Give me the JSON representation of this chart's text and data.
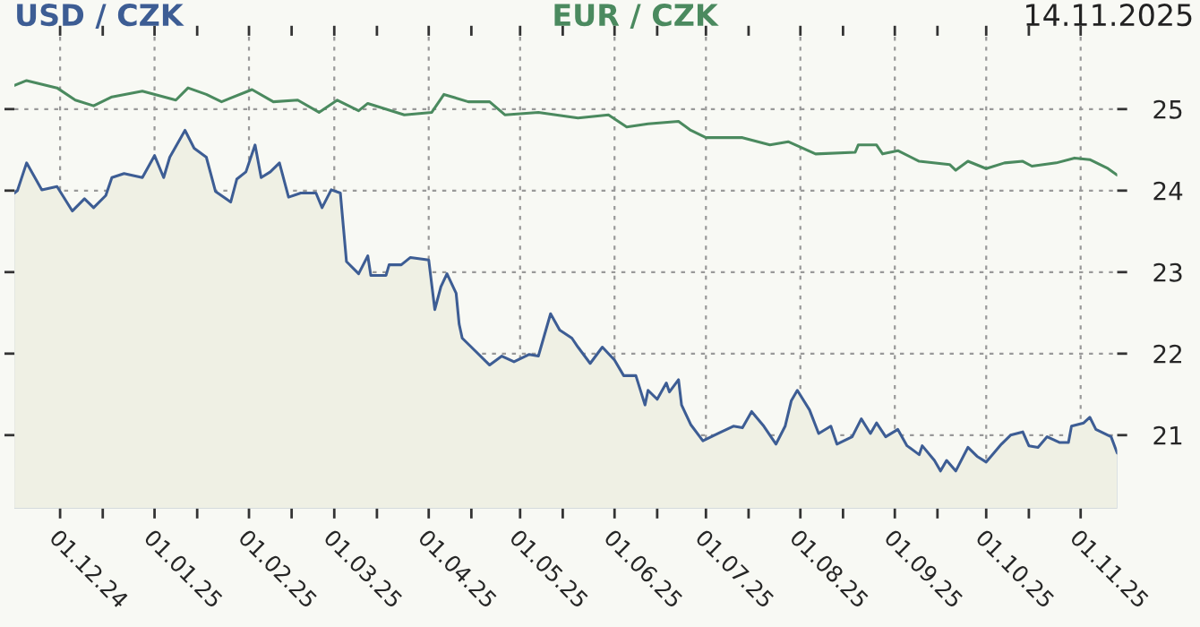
{
  "chart_data": {
    "type": "line",
    "annotations": [
      "14.11.2025"
    ],
    "legend": "top",
    "grid": true,
    "xlim": [
      "2024-11-16",
      "2025-11-13"
    ],
    "ylim": [
      20.1,
      25.9
    ],
    "yticks": [
      21,
      22,
      23,
      24,
      25
    ],
    "tick_labels": "xy",
    "xticks": [
      {
        "value": "2024-12-01",
        "label": "01.12.24"
      },
      {
        "value": "2024-12-15",
        "label": null
      },
      {
        "value": "2025-01-01",
        "label": "01.01.25"
      },
      {
        "value": "2025-01-15",
        "label": null
      },
      {
        "value": "2025-02-01",
        "label": "01.02.25"
      },
      {
        "value": "2025-02-15",
        "label": null
      },
      {
        "value": "2025-03-01",
        "label": "01.03.25"
      },
      {
        "value": "2025-03-15",
        "label": null
      },
      {
        "value": "2025-04-01",
        "label": "01.04.25"
      },
      {
        "value": "2025-04-15",
        "label": null
      },
      {
        "value": "2025-05-01",
        "label": "01.05.25"
      },
      {
        "value": "2025-05-15",
        "label": null
      },
      {
        "value": "2025-06-01",
        "label": "01.06.25"
      },
      {
        "value": "2025-06-15",
        "label": null
      },
      {
        "value": "2025-07-01",
        "label": "01.07.25"
      },
      {
        "value": "2025-07-15",
        "label": null
      },
      {
        "value": "2025-08-01",
        "label": "01.08.25"
      },
      {
        "value": "2025-08-15",
        "label": null
      },
      {
        "value": "2025-09-01",
        "label": "01.09.25"
      },
      {
        "value": "2025-09-15",
        "label": null
      },
      {
        "value": "2025-10-01",
        "label": "01.10.25"
      },
      {
        "value": "2025-10-15",
        "label": null
      },
      {
        "value": "2025-11-01",
        "label": "01.11.25"
      }
    ],
    "series": [
      {
        "name": "USD / CZK",
        "type": "area",
        "color": "#3d5d94",
        "x": [
          "2024-11-16",
          "2024-11-17",
          "2024-11-20",
          "2024-11-25",
          "2024-11-30",
          "2024-12-05",
          "2024-12-09",
          "2024-12-12",
          "2024-12-16",
          "2024-12-18",
          "2024-12-22",
          "2024-12-28",
          "2025-01-01",
          "2025-01-04",
          "2025-01-06",
          "2025-01-11",
          "2025-01-14",
          "2025-01-18",
          "2025-01-21",
          "2025-01-26",
          "2025-01-28",
          "2025-01-31",
          "2025-02-03",
          "2025-02-05",
          "2025-02-08",
          "2025-02-11",
          "2025-02-14",
          "2025-02-18",
          "2025-02-23",
          "2025-02-25",
          "2025-02-28",
          "2025-03-03",
          "2025-03-05",
          "2025-03-09",
          "2025-03-12",
          "2025-03-13",
          "2025-03-18",
          "2025-03-19",
          "2025-03-23",
          "2025-03-26",
          "2025-04-01",
          "2025-04-03",
          "2025-04-05",
          "2025-04-07",
          "2025-04-10",
          "2025-04-11",
          "2025-04-12",
          "2025-04-15",
          "2025-04-21",
          "2025-04-25",
          "2025-04-29",
          "2025-05-04",
          "2025-05-07",
          "2025-05-11",
          "2025-05-14",
          "2025-05-18",
          "2025-05-20",
          "2025-05-24",
          "2025-05-28",
          "2025-06-01",
          "2025-06-04",
          "2025-06-08",
          "2025-06-11",
          "2025-06-12",
          "2025-06-15",
          "2025-06-18",
          "2025-06-19",
          "2025-06-22",
          "2025-06-23",
          "2025-06-26",
          "2025-06-30",
          "2025-07-05",
          "2025-07-10",
          "2025-07-13",
          "2025-07-16",
          "2025-07-20",
          "2025-07-24",
          "2025-07-27",
          "2025-07-29",
          "2025-07-31",
          "2025-08-04",
          "2025-08-07",
          "2025-08-11",
          "2025-08-13",
          "2025-08-18",
          "2025-08-21",
          "2025-08-24",
          "2025-08-26",
          "2025-08-29",
          "2025-09-02",
          "2025-09-05",
          "2025-09-09",
          "2025-09-10",
          "2025-09-14",
          "2025-09-16",
          "2025-09-18",
          "2025-09-21",
          "2025-09-25",
          "2025-09-28",
          "2025-10-01",
          "2025-10-06",
          "2025-10-09",
          "2025-10-13",
          "2025-10-15",
          "2025-10-18",
          "2025-10-21",
          "2025-10-25",
          "2025-10-28",
          "2025-10-29",
          "2025-11-02",
          "2025-11-04",
          "2025-11-06",
          "2025-11-11",
          "2025-11-13"
        ],
        "values": [
          23.97,
          24.0,
          24.34,
          24.01,
          24.05,
          23.75,
          23.9,
          23.79,
          23.94,
          24.16,
          24.21,
          24.16,
          24.43,
          24.16,
          24.41,
          24.74,
          24.52,
          24.41,
          23.99,
          23.86,
          24.14,
          24.23,
          24.56,
          24.16,
          24.23,
          24.34,
          23.92,
          23.97,
          23.97,
          23.79,
          24.01,
          23.97,
          23.13,
          22.98,
          23.2,
          22.96,
          22.96,
          23.09,
          23.09,
          23.18,
          23.15,
          22.54,
          22.82,
          22.98,
          22.74,
          22.36,
          22.19,
          22.08,
          21.86,
          21.97,
          21.9,
          21.99,
          21.97,
          22.49,
          22.29,
          22.19,
          22.08,
          21.88,
          22.08,
          21.92,
          21.73,
          21.73,
          21.37,
          21.55,
          21.44,
          21.64,
          21.53,
          21.68,
          21.37,
          21.13,
          20.93,
          21.02,
          21.11,
          21.09,
          21.29,
          21.11,
          20.89,
          21.11,
          21.42,
          21.55,
          21.31,
          21.02,
          21.11,
          20.89,
          20.98,
          21.2,
          21.02,
          21.15,
          20.98,
          21.07,
          20.87,
          20.76,
          20.87,
          20.69,
          20.56,
          20.69,
          20.56,
          20.85,
          20.74,
          20.67,
          20.89,
          21.0,
          21.04,
          20.87,
          20.85,
          20.98,
          20.91,
          20.91,
          21.11,
          21.15,
          21.22,
          21.07,
          20.98,
          20.78
        ]
      },
      {
        "name": "EUR / CZK",
        "color": "#4b8a5f",
        "x": [
          "2024-11-16",
          "2024-11-20",
          "2024-11-30",
          "2024-12-06",
          "2024-12-12",
          "2024-12-18",
          "2024-12-28",
          "2025-01-08",
          "2025-01-12",
          "2025-01-18",
          "2025-01-23",
          "2025-02-02",
          "2025-02-09",
          "2025-02-17",
          "2025-02-24",
          "2025-03-02",
          "2025-03-09",
          "2025-03-12",
          "2025-03-24",
          "2025-04-02",
          "2025-04-06",
          "2025-04-14",
          "2025-04-21",
          "2025-04-26",
          "2025-05-07",
          "2025-05-20",
          "2025-05-30",
          "2025-06-05",
          "2025-06-12",
          "2025-06-22",
          "2025-06-26",
          "2025-07-01",
          "2025-07-13",
          "2025-07-22",
          "2025-07-28",
          "2025-08-06",
          "2025-08-19",
          "2025-08-20",
          "2025-08-26",
          "2025-08-28",
          "2025-09-02",
          "2025-09-09",
          "2025-09-19",
          "2025-09-21",
          "2025-09-25",
          "2025-10-01",
          "2025-10-07",
          "2025-10-13",
          "2025-10-16",
          "2025-10-24",
          "2025-10-30",
          "2025-11-04",
          "2025-11-10",
          "2025-11-13"
        ],
        "values": [
          25.29,
          25.35,
          25.26,
          25.11,
          25.04,
          25.15,
          25.22,
          25.11,
          25.26,
          25.18,
          25.09,
          25.24,
          25.09,
          25.11,
          24.96,
          25.11,
          24.98,
          25.07,
          24.93,
          24.96,
          25.18,
          25.09,
          25.09,
          24.93,
          24.96,
          24.89,
          24.93,
          24.78,
          24.82,
          24.85,
          24.74,
          24.65,
          24.65,
          24.56,
          24.6,
          24.45,
          24.47,
          24.56,
          24.56,
          24.45,
          24.49,
          24.36,
          24.32,
          24.25,
          24.36,
          24.27,
          24.34,
          24.36,
          24.3,
          24.34,
          24.4,
          24.38,
          24.27,
          24.19
        ]
      }
    ]
  }
}
